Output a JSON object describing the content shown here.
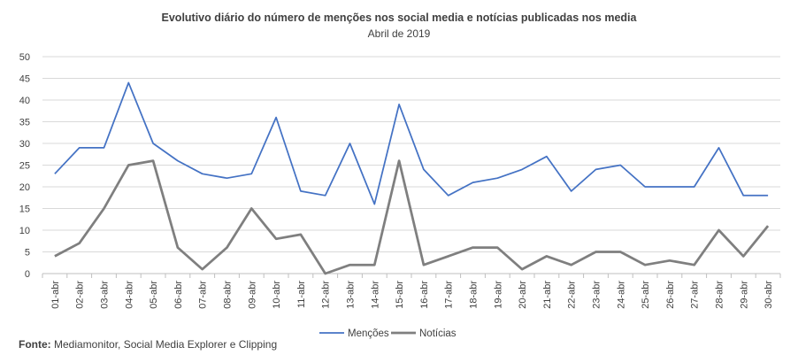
{
  "chart_data": {
    "type": "line",
    "title": "Evolutivo diário do número de menções nos social media e notícias publicadas nos media",
    "subtitle": "Abril de 2019",
    "categories": [
      "01-abr",
      "02-abr",
      "03-abr",
      "04-abr",
      "05-abr",
      "06-abr",
      "07-abr",
      "08-abr",
      "09-abr",
      "10-abr",
      "11-abr",
      "12-abr",
      "13-abr",
      "14-abr",
      "15-abr",
      "16-abr",
      "17-abr",
      "18-abr",
      "19-abr",
      "20-abr",
      "21-abr",
      "22-abr",
      "23-abr",
      "24-abr",
      "25-abr",
      "26-abr",
      "27-abr",
      "28-abr",
      "29-abr",
      "30-abr"
    ],
    "series": [
      {
        "name": "Menções",
        "color": "#4472C4",
        "values": [
          23,
          29,
          29,
          44,
          30,
          26,
          23,
          22,
          23,
          36,
          19,
          18,
          30,
          16,
          39,
          24,
          18,
          21,
          22,
          24,
          27,
          19,
          24,
          25,
          20,
          20,
          20,
          29,
          18,
          18
        ]
      },
      {
        "name": "Notícias",
        "color": "#7F7F7F",
        "values": [
          4,
          7,
          15,
          25,
          26,
          6,
          1,
          6,
          15,
          8,
          9,
          0,
          2,
          2,
          26,
          2,
          4,
          6,
          6,
          1,
          4,
          2,
          5,
          5,
          2,
          3,
          2,
          10,
          4,
          11
        ]
      }
    ],
    "yticks": [
      0,
      5,
      10,
      15,
      20,
      25,
      30,
      35,
      40,
      45,
      50
    ],
    "ylim": [
      0,
      50
    ],
    "grid": true,
    "legend": "bottom",
    "xlabel": "",
    "ylabel": ""
  },
  "footer": {
    "source_label": "Fonte:",
    "source_text": "Mediamonitor, Social Media Explorer e Clipping"
  }
}
